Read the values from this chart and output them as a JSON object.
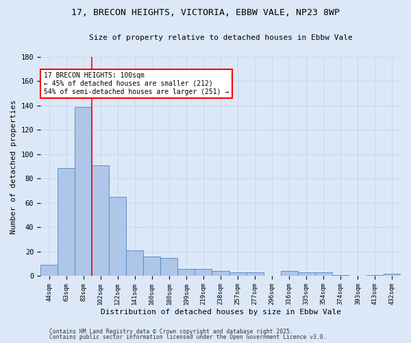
{
  "title_line1": "17, BRECON HEIGHTS, VICTORIA, EBBW VALE, NP23 8WP",
  "title_line2": "Size of property relative to detached houses in Ebbw Vale",
  "xlabel": "Distribution of detached houses by size in Ebbw Vale",
  "ylabel": "Number of detached properties",
  "categories": [
    "44sqm",
    "63sqm",
    "83sqm",
    "102sqm",
    "122sqm",
    "141sqm",
    "160sqm",
    "180sqm",
    "199sqm",
    "219sqm",
    "238sqm",
    "257sqm",
    "277sqm",
    "296sqm",
    "316sqm",
    "335sqm",
    "354sqm",
    "374sqm",
    "393sqm",
    "413sqm",
    "432sqm"
  ],
  "values": [
    9,
    89,
    139,
    91,
    65,
    21,
    16,
    15,
    6,
    6,
    4,
    3,
    3,
    0,
    4,
    3,
    3,
    1,
    0,
    1,
    2
  ],
  "bar_color": "#aec6e8",
  "bar_edge_color": "#5b8fc9",
  "grid_color": "#c8d8ec",
  "background_color": "#dce8f8",
  "red_line_index": 3,
  "annotation_text": "17 BRECON HEIGHTS: 100sqm\n← 45% of detached houses are smaller (212)\n54% of semi-detached houses are larger (251) →",
  "annotation_box_color": "white",
  "annotation_box_edge": "red",
  "ylim": [
    0,
    180
  ],
  "yticks": [
    0,
    20,
    40,
    60,
    80,
    100,
    120,
    140,
    160,
    180
  ],
  "footer_line1": "Contains HM Land Registry data © Crown copyright and database right 2025.",
  "footer_line2": "Contains public sector information licensed under the Open Government Licence v3.0."
}
